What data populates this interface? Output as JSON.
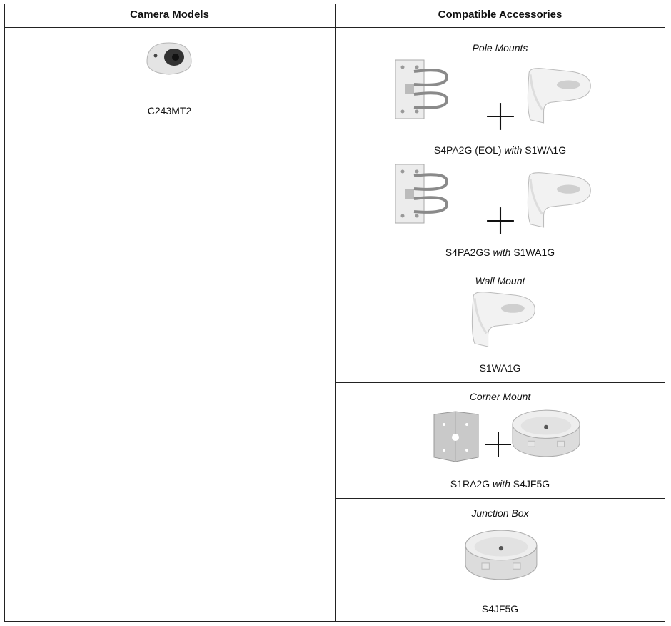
{
  "table": {
    "headers": [
      "Camera Models",
      "Compatible Accessories"
    ],
    "camera": "C243MT2",
    "sections": [
      {
        "title": "Pole Mounts",
        "items": [
          {
            "main": "S4PA2G (EOL)",
            "connector": "with",
            "secondary": "S1WA1G"
          },
          {
            "main": "S4PA2GS",
            "connector": "with",
            "secondary": "S1WA1G"
          }
        ]
      },
      {
        "title": "Wall Mount",
        "items": [
          {
            "main": "S1WA1G"
          }
        ]
      },
      {
        "title": "Corner Mount",
        "items": [
          {
            "main": "S1RA2G",
            "connector": "with",
            "secondary": "S4JF5G"
          }
        ]
      },
      {
        "title": "Junction Box",
        "items": [
          {
            "main": "S4JF5G"
          }
        ]
      }
    ]
  }
}
